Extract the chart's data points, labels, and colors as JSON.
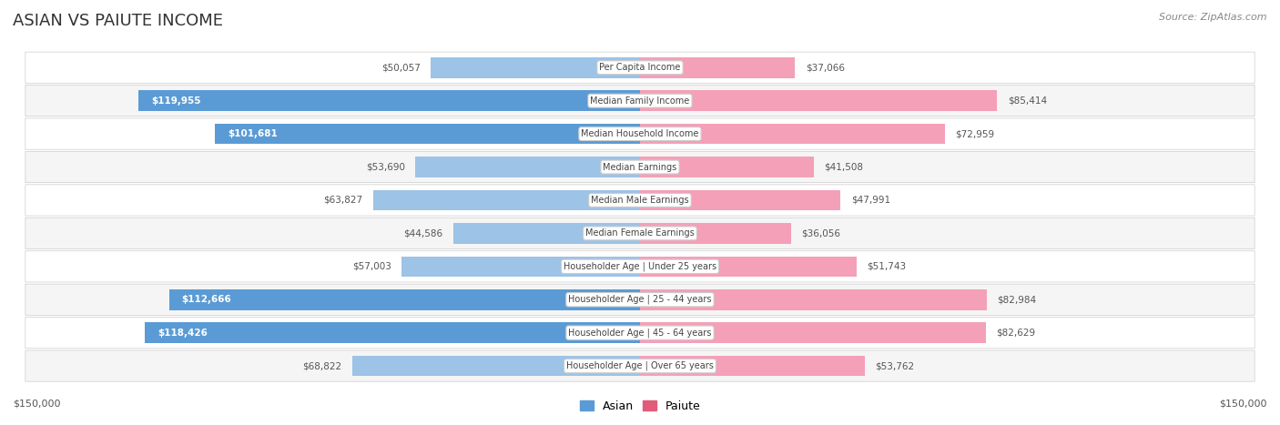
{
  "title": "ASIAN VS PAIUTE INCOME",
  "source": "Source: ZipAtlas.com",
  "categories": [
    "Per Capita Income",
    "Median Family Income",
    "Median Household Income",
    "Median Earnings",
    "Median Male Earnings",
    "Median Female Earnings",
    "Householder Age | Under 25 years",
    "Householder Age | 25 - 44 years",
    "Householder Age | 45 - 64 years",
    "Householder Age | Over 65 years"
  ],
  "asian_values": [
    50057,
    119955,
    101681,
    53690,
    63827,
    44586,
    57003,
    112666,
    118426,
    68822
  ],
  "paiute_values": [
    37066,
    85414,
    72959,
    41508,
    47991,
    36056,
    51743,
    82984,
    82629,
    53762
  ],
  "asian_labels": [
    "$50,057",
    "$119,955",
    "$101,681",
    "$53,690",
    "$63,827",
    "$44,586",
    "$57,003",
    "$112,666",
    "$118,426",
    "$68,822"
  ],
  "paiute_labels": [
    "$37,066",
    "$85,414",
    "$72,959",
    "$41,508",
    "$47,991",
    "$36,056",
    "$51,743",
    "$82,984",
    "$82,629",
    "$53,762"
  ],
  "max_value": 150000,
  "asian_color_strong": "#5b9bd5",
  "asian_color_light": "#9dc3e6",
  "paiute_color_strong": "#e05c7a",
  "paiute_color_light": "#f4a0b8",
  "row_bg_odd": "#f5f5f5",
  "row_bg_even": "#ffffff",
  "row_border_color": "#cccccc",
  "legend_asian": "Asian",
  "legend_paiute": "Paiute",
  "axis_label_left": "$150,000",
  "axis_label_right": "$150,000",
  "threshold_strong": 90000
}
